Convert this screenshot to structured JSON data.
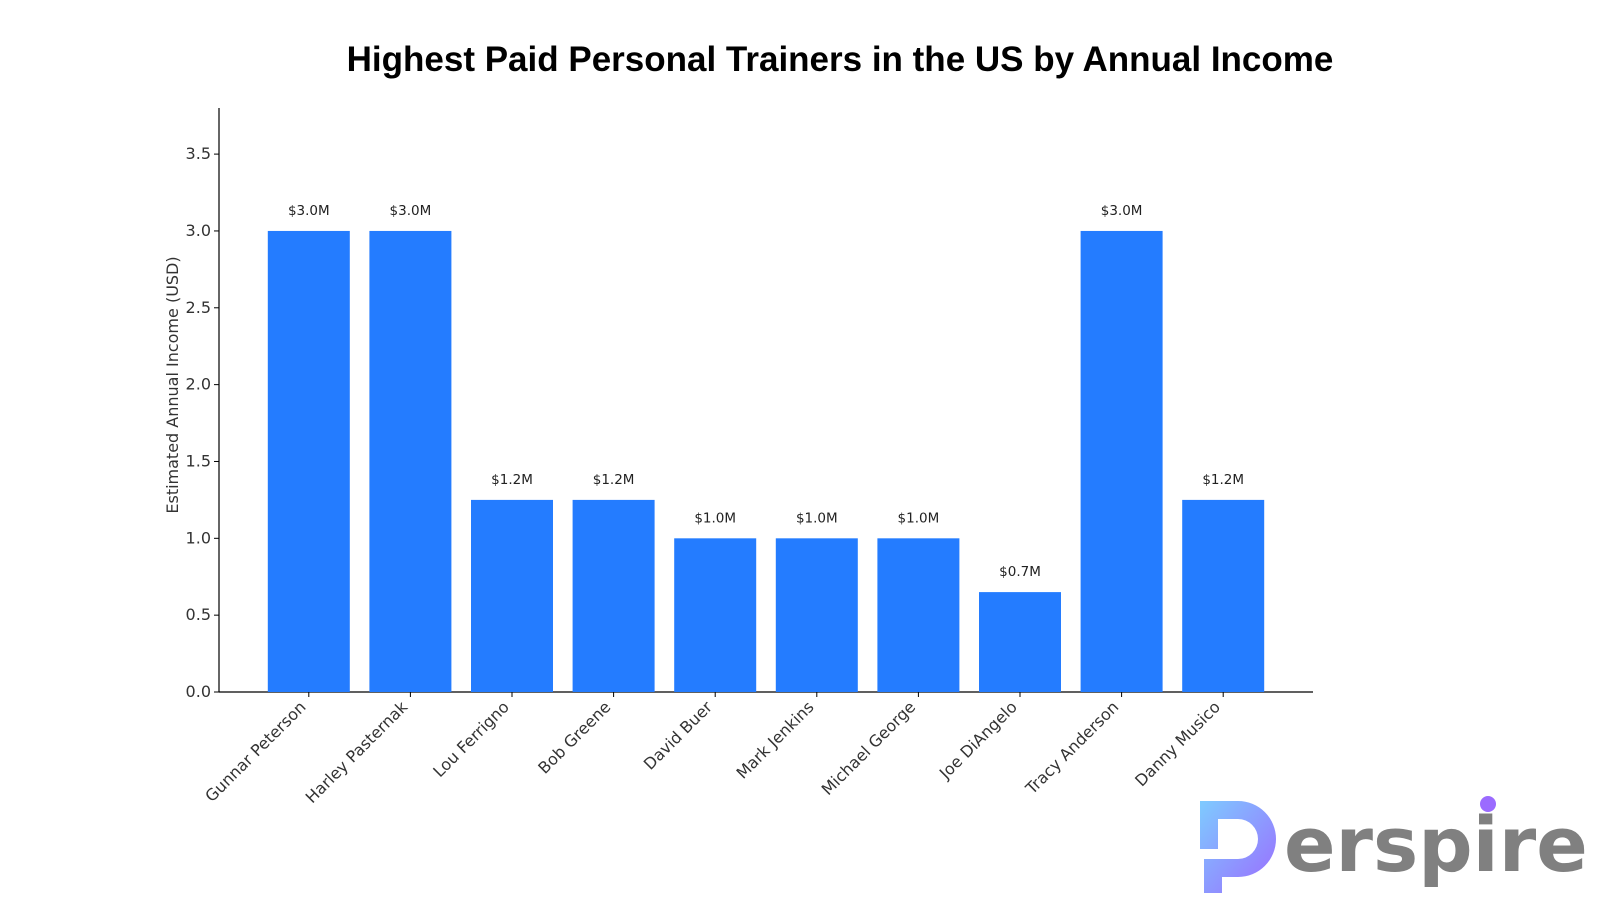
{
  "chart_data": {
    "type": "bar",
    "title": "Highest Paid Personal Trainers in the US by Annual Income",
    "xlabel": "",
    "ylabel": "Estimated Annual Income (USD)",
    "ylim": [
      0,
      3.8
    ],
    "yticks": [
      "0.0",
      "0.5",
      "1.0",
      "1.5",
      "2.0",
      "2.5",
      "3.0",
      "3.5"
    ],
    "categories": [
      "Gunnar Peterson",
      "Harley Pasternak",
      "Lou Ferrigno",
      "Bob Greene",
      "David Buer",
      "Mark Jenkins",
      "Michael George",
      "Joe DiAngelo",
      "Tracy Anderson",
      "Danny Musico"
    ],
    "values": [
      3.0,
      3.0,
      1.25,
      1.25,
      1.0,
      1.0,
      1.0,
      0.65,
      3.0,
      1.25
    ],
    "data_labels": [
      "$3.0M",
      "$3.0M",
      "$1.2M",
      "$1.2M",
      "$1.0M",
      "$1.0M",
      "$1.0M",
      "$0.7M",
      "$3.0M",
      "$1.2M"
    ],
    "bar_color": "#247cff",
    "grid": false,
    "legend": "none"
  },
  "logo": {
    "text": "Perspire",
    "colors": [
      "#7ecbff",
      "#9b6bff",
      "#808080"
    ]
  }
}
